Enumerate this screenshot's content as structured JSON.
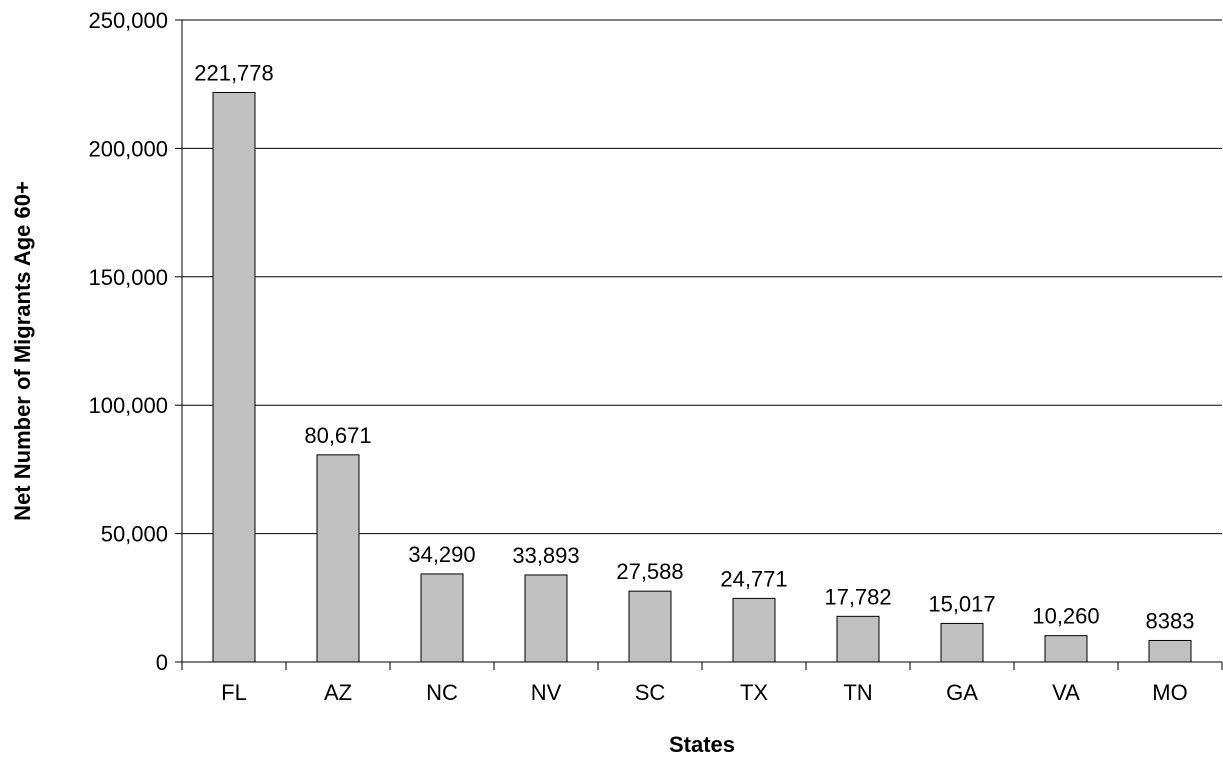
{
  "chart_data": {
    "type": "bar",
    "title": "",
    "xlabel": "States",
    "ylabel": "Net Number of Migrants Age 60+",
    "categories": [
      "FL",
      "AZ",
      "NC",
      "NV",
      "SC",
      "TX",
      "TN",
      "GA",
      "VA",
      "MO"
    ],
    "values": [
      221778,
      80671,
      34290,
      33893,
      27588,
      24771,
      17782,
      15017,
      10260,
      8383
    ],
    "data_labels": [
      "221,778",
      "80,671",
      "34,290",
      "33,893",
      "27,588",
      "24,771",
      "17,782",
      "15,017",
      "10,260",
      "8383"
    ],
    "ylim": [
      0,
      250000
    ],
    "yticks": [
      0,
      50000,
      100000,
      150000,
      200000,
      250000
    ],
    "ytick_labels": [
      "0",
      "50,000",
      "100,000",
      "150,000",
      "200,000",
      "250,000"
    ],
    "grid": true,
    "legend": false,
    "colors": {
      "bar_fill": "#c0c0c0",
      "bar_stroke": "#000000",
      "gridline": "#000000"
    }
  }
}
